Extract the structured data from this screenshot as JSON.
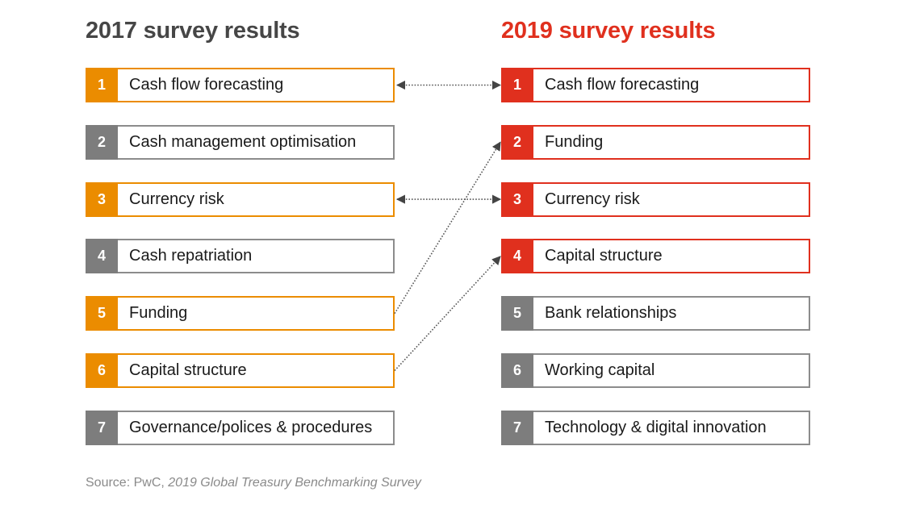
{
  "left": {
    "title": "2017 survey results",
    "items": [
      {
        "rank": "1",
        "label": "Cash flow forecasting",
        "highlight": "orange"
      },
      {
        "rank": "2",
        "label": "Cash management optimisation",
        "highlight": "none"
      },
      {
        "rank": "3",
        "label": "Currency risk",
        "highlight": "orange"
      },
      {
        "rank": "4",
        "label": "Cash repatriation",
        "highlight": "none"
      },
      {
        "rank": "5",
        "label": "Funding",
        "highlight": "orange"
      },
      {
        "rank": "6",
        "label": "Capital structure",
        "highlight": "orange"
      },
      {
        "rank": "7",
        "label": "Governance/polices & procedures",
        "highlight": "none"
      }
    ]
  },
  "right": {
    "title": "2019 survey results",
    "items": [
      {
        "rank": "1",
        "label": "Cash flow forecasting",
        "highlight": "red"
      },
      {
        "rank": "2",
        "label": "Funding",
        "highlight": "red"
      },
      {
        "rank": "3",
        "label": "Currency risk",
        "highlight": "red"
      },
      {
        "rank": "4",
        "label": "Capital structure",
        "highlight": "red"
      },
      {
        "rank": "5",
        "label": "Bank relationships",
        "highlight": "none"
      },
      {
        "rank": "6",
        "label": "Working capital",
        "highlight": "none"
      },
      {
        "rank": "7",
        "label": "Technology & digital innovation",
        "highlight": "none"
      }
    ]
  },
  "connections": [
    {
      "from_2017_rank": 1,
      "to_2019_rank": 1,
      "type": "bidirectional"
    },
    {
      "from_2017_rank": 3,
      "to_2019_rank": 3,
      "type": "bidirectional"
    },
    {
      "from_2017_rank": 5,
      "to_2019_rank": 2,
      "type": "arrow-to-2019"
    },
    {
      "from_2017_rank": 6,
      "to_2019_rank": 4,
      "type": "arrow-to-2019"
    }
  ],
  "source": {
    "prefix": "Source: PwC, ",
    "title": "2019 Global Treasury Benchmarking Survey"
  },
  "colors": {
    "orange": "#eb8c00",
    "red": "#e0301e",
    "grey": "#7d7d7d",
    "heading_2017": "#464646",
    "connector": "#555555"
  }
}
